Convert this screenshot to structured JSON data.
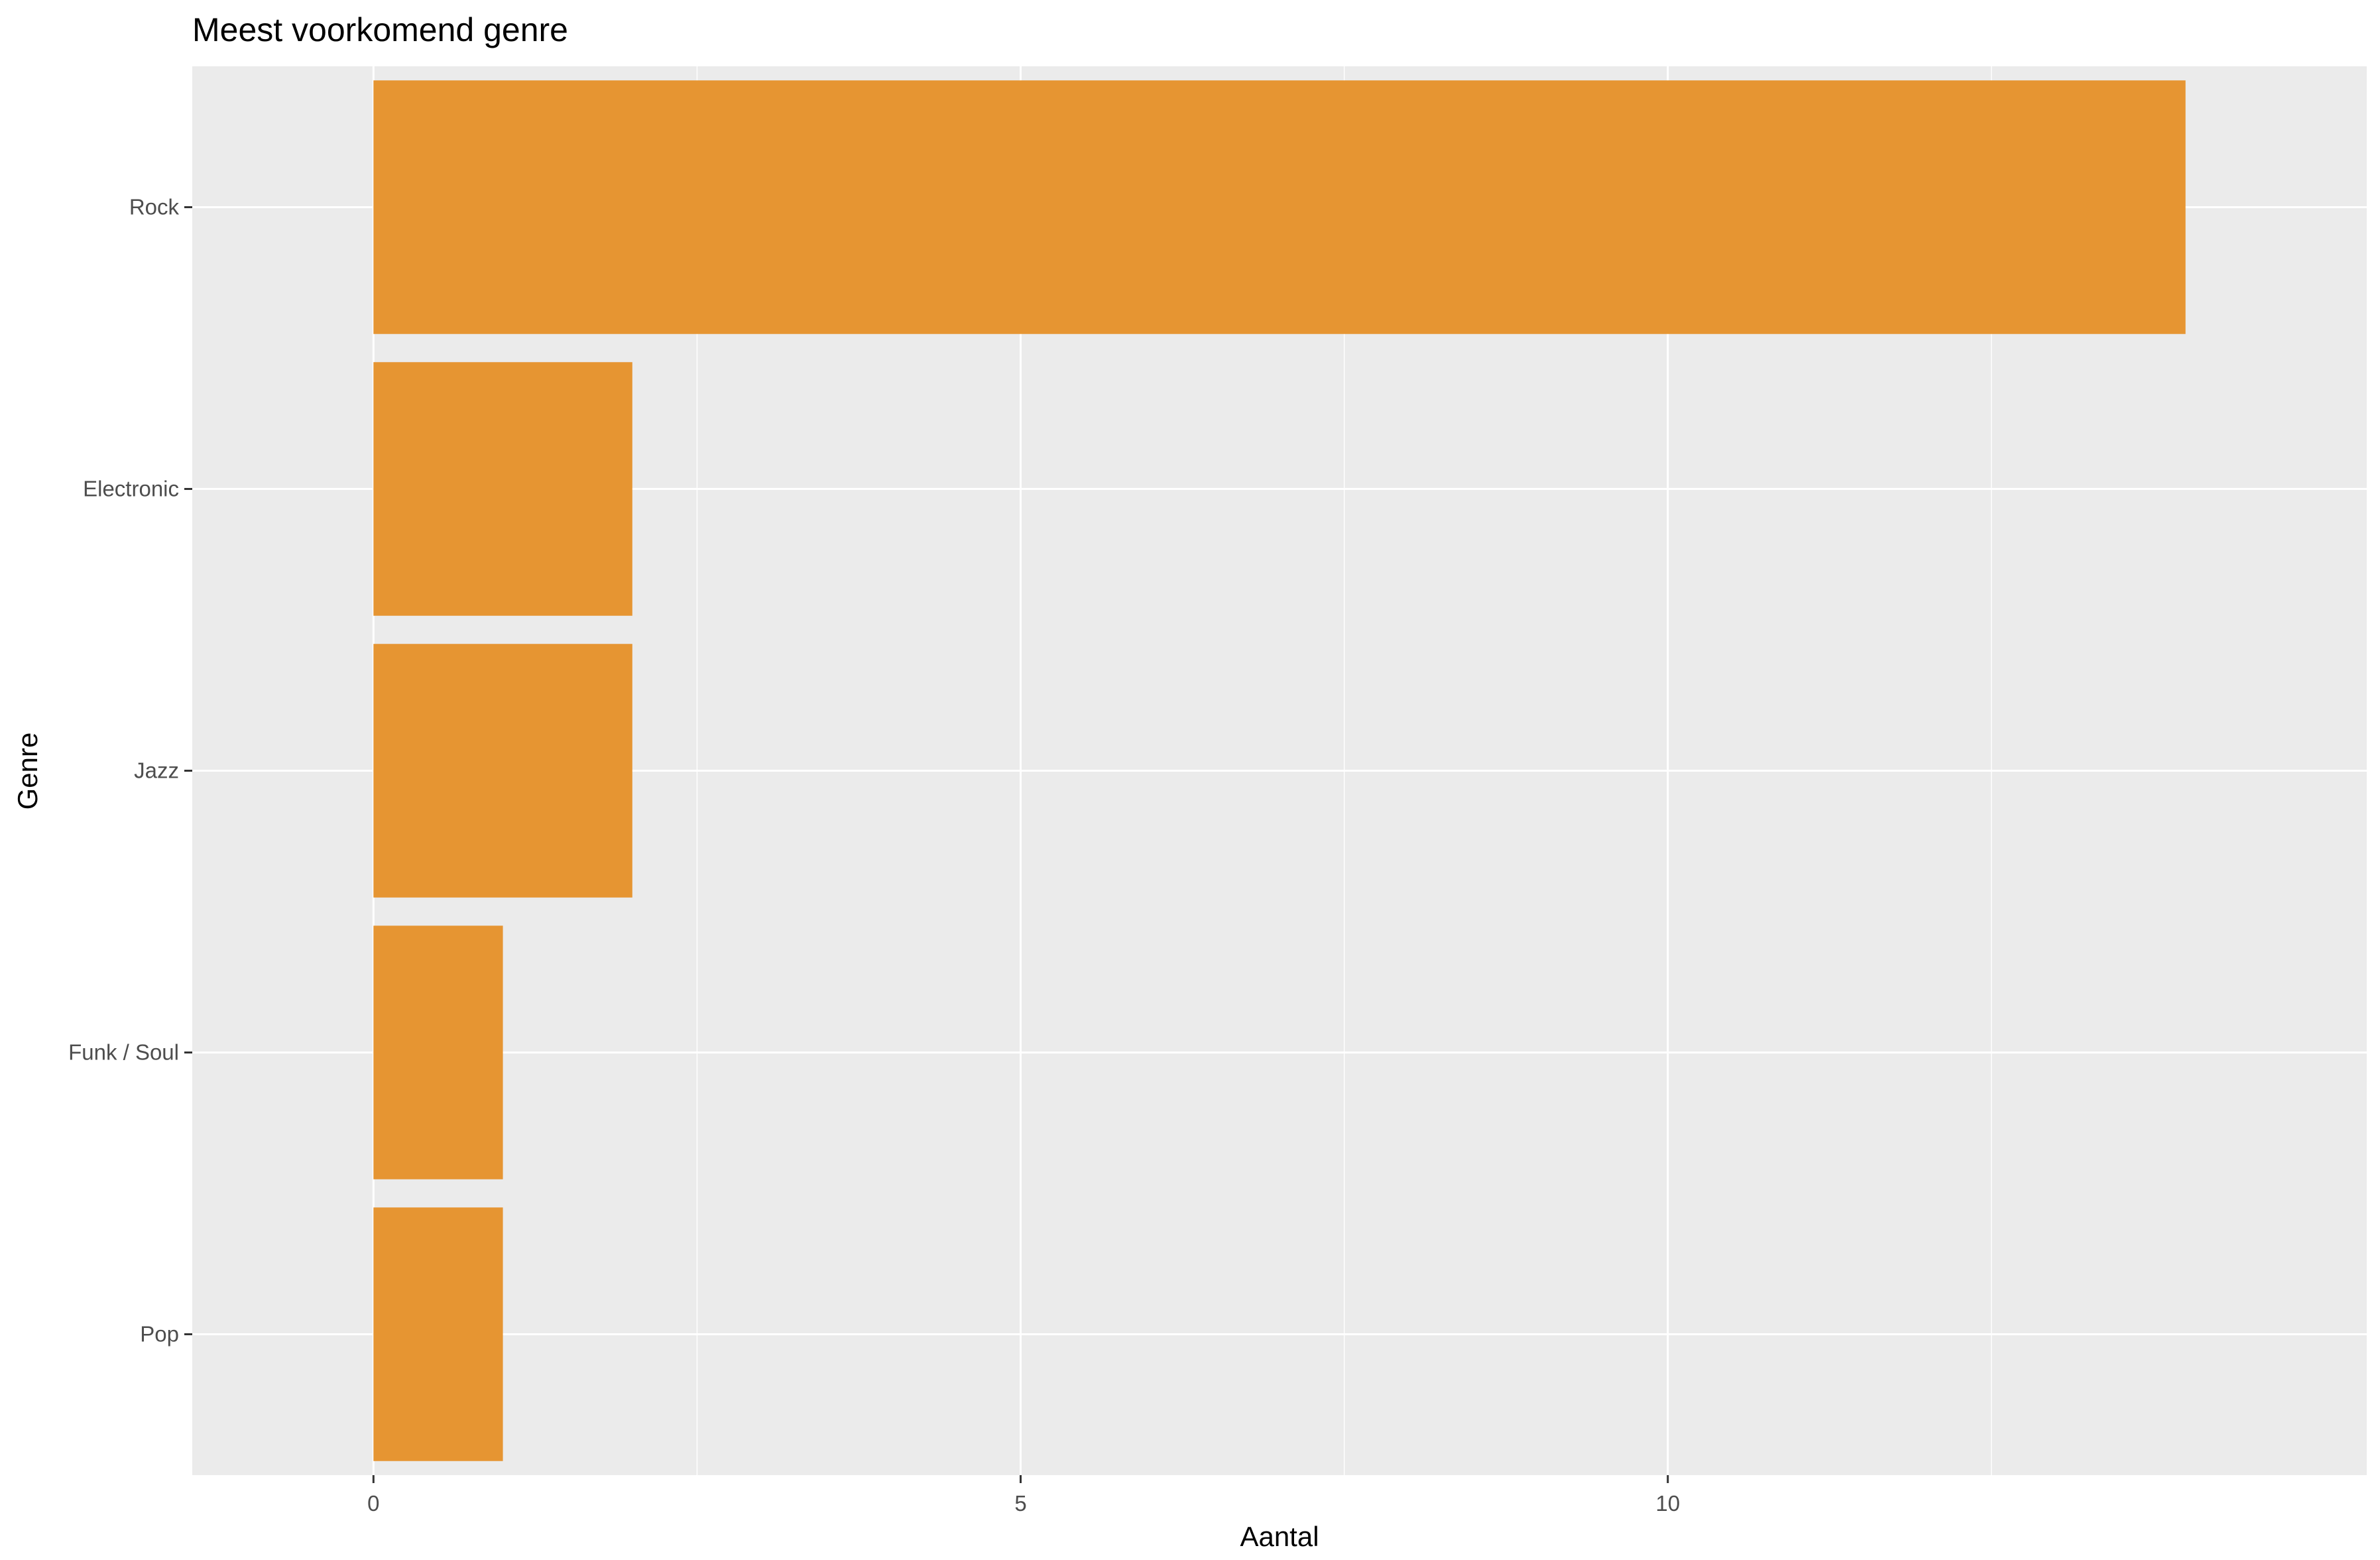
{
  "chart_data": {
    "type": "bar",
    "orientation": "horizontal",
    "title": "Meest voorkomend genre",
    "xlabel": "Aantal",
    "ylabel": "Genre",
    "categories": [
      "Rock",
      "Electronic",
      "Jazz",
      "Funk / Soul",
      "Pop"
    ],
    "values": [
      14,
      2,
      2,
      1,
      1
    ],
    "xlim": [
      -1.4,
      15.4
    ],
    "x_ticks": [
      0,
      5,
      10
    ],
    "x_tick_labels": [
      "0",
      "5",
      "10"
    ],
    "grid": true,
    "legend": "none",
    "colors": {
      "bar": "#E69532",
      "panel_background": "#EBEBEB",
      "grid_line": "#FFFFFF",
      "tick_text": "#4D4D4D",
      "tick_mark": "#333333"
    }
  }
}
